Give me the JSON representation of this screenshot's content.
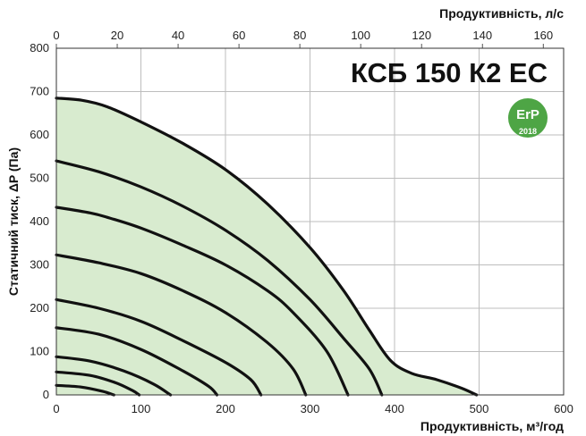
{
  "chart_data": {
    "type": "line",
    "title": "КСБ 150 К2 ЕС",
    "xlabel": "Продуктивність, м³/год",
    "x2label": "Продуктивність, л/с",
    "ylabel": "Статичний тиск, ΔP (Па)",
    "xlim": [
      0,
      600
    ],
    "x2lim": [
      0,
      166.67
    ],
    "ylim": [
      0,
      800
    ],
    "x_ticks": [
      0,
      100,
      200,
      300,
      400,
      500,
      600
    ],
    "x2_ticks": [
      0,
      20,
      40,
      60,
      80,
      100,
      120,
      140,
      160
    ],
    "y_ticks": [
      0,
      100,
      200,
      300,
      400,
      500,
      600,
      700,
      800
    ],
    "grid": true,
    "area_color": "#d8ebcf",
    "line_color": "#111111",
    "badge": {
      "text": "ErP",
      "year": "2018",
      "color": "#4ea545"
    },
    "series": [
      {
        "points": [
          [
            0,
            685
          ],
          [
            30,
            680
          ],
          [
            60,
            665
          ],
          [
            100,
            630
          ],
          [
            150,
            580
          ],
          [
            200,
            520
          ],
          [
            250,
            440
          ],
          [
            300,
            340
          ],
          [
            340,
            240
          ],
          [
            370,
            150
          ],
          [
            395,
            80
          ],
          [
            420,
            50
          ],
          [
            450,
            35
          ],
          [
            480,
            15
          ],
          [
            497,
            0
          ]
        ]
      },
      {
        "points": [
          [
            0,
            540
          ],
          [
            50,
            515
          ],
          [
            100,
            480
          ],
          [
            150,
            435
          ],
          [
            200,
            380
          ],
          [
            250,
            310
          ],
          [
            300,
            220
          ],
          [
            340,
            130
          ],
          [
            370,
            60
          ],
          [
            385,
            0
          ]
        ]
      },
      {
        "points": [
          [
            0,
            433
          ],
          [
            40,
            420
          ],
          [
            60,
            410
          ],
          [
            100,
            385
          ],
          [
            150,
            345
          ],
          [
            200,
            300
          ],
          [
            250,
            240
          ],
          [
            280,
            190
          ],
          [
            320,
            100
          ],
          [
            345,
            0
          ]
        ]
      },
      {
        "points": [
          [
            0,
            323
          ],
          [
            50,
            305
          ],
          [
            100,
            280
          ],
          [
            150,
            240
          ],
          [
            200,
            190
          ],
          [
            250,
            120
          ],
          [
            280,
            60
          ],
          [
            295,
            0
          ]
        ]
      },
      {
        "points": [
          [
            0,
            220
          ],
          [
            50,
            200
          ],
          [
            100,
            170
          ],
          [
            150,
            125
          ],
          [
            200,
            75
          ],
          [
            230,
            35
          ],
          [
            242,
            0
          ]
        ]
      },
      {
        "points": [
          [
            0,
            155
          ],
          [
            50,
            140
          ],
          [
            100,
            105
          ],
          [
            150,
            55
          ],
          [
            180,
            20
          ],
          [
            190,
            0
          ]
        ]
      },
      {
        "points": [
          [
            0,
            88
          ],
          [
            40,
            78
          ],
          [
            80,
            55
          ],
          [
            115,
            25
          ],
          [
            135,
            0
          ]
        ]
      },
      {
        "points": [
          [
            0,
            53
          ],
          [
            40,
            45
          ],
          [
            70,
            28
          ],
          [
            90,
            10
          ],
          [
            98,
            0
          ]
        ]
      },
      {
        "points": [
          [
            0,
            22
          ],
          [
            30,
            18
          ],
          [
            55,
            8
          ],
          [
            68,
            0
          ]
        ]
      }
    ]
  }
}
